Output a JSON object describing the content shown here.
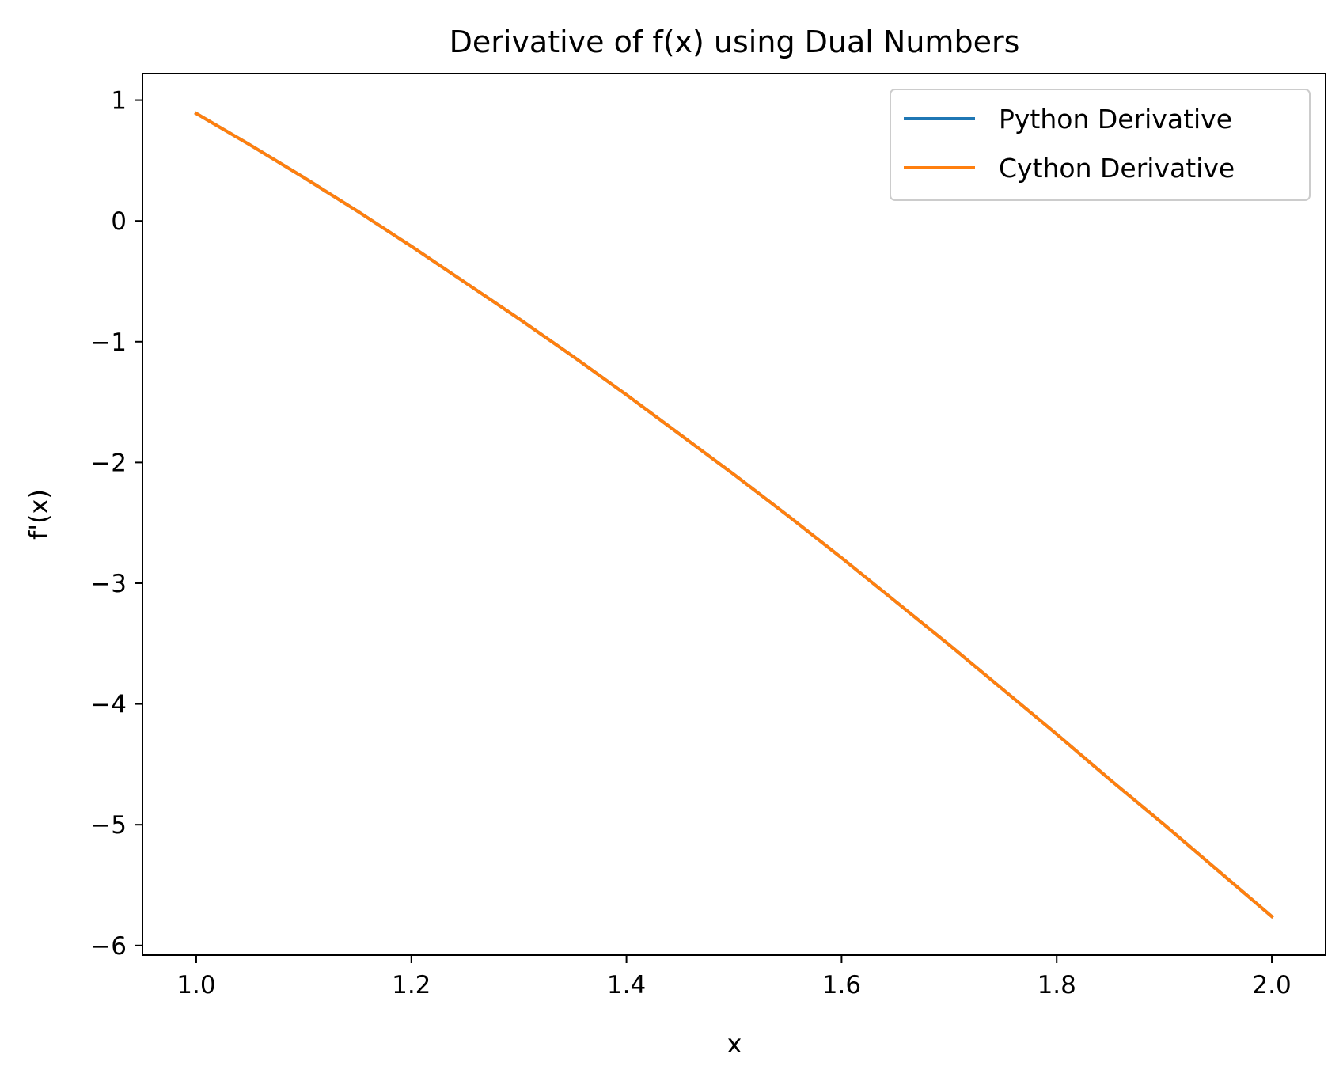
{
  "chart_data": {
    "type": "line",
    "title": "Derivative of f(x) using Dual Numbers",
    "xlabel": "x",
    "ylabel": "f'(x)",
    "xlim": [
      0.95,
      2.05
    ],
    "ylim": [
      -6.08,
      1.22
    ],
    "xticks": [
      1.0,
      1.2,
      1.4,
      1.6,
      1.8,
      2.0
    ],
    "xtick_labels": [
      "1.0",
      "1.2",
      "1.4",
      "1.6",
      "1.8",
      "2.0"
    ],
    "yticks": [
      1,
      0,
      -1,
      -2,
      -3,
      -4,
      -5,
      -6
    ],
    "ytick_labels": [
      "1",
      "0",
      "−1",
      "−2",
      "−3",
      "−4",
      "−5",
      "−6"
    ],
    "grid": false,
    "legend_position": "top-right",
    "x": [
      1.0,
      1.05,
      1.1,
      1.15,
      1.2,
      1.25,
      1.3,
      1.35,
      1.4,
      1.45,
      1.5,
      1.55,
      1.6,
      1.65,
      1.7,
      1.75,
      1.8,
      1.85,
      1.9,
      1.95,
      2.0
    ],
    "series": [
      {
        "name": "Python Derivative",
        "color": "#1f77b4",
        "values": [
          0.89,
          0.63,
          0.36,
          0.08,
          -0.21,
          -0.51,
          -0.81,
          -1.12,
          -1.44,
          -1.77,
          -2.1,
          -2.44,
          -2.79,
          -3.15,
          -3.51,
          -3.88,
          -4.25,
          -4.63,
          -5.0,
          -5.38,
          -5.76
        ]
      },
      {
        "name": "Cython Derivative",
        "color": "#ff7f0e",
        "values": [
          0.89,
          0.63,
          0.36,
          0.08,
          -0.21,
          -0.51,
          -0.81,
          -1.12,
          -1.44,
          -1.77,
          -2.1,
          -2.44,
          -2.79,
          -3.15,
          -3.51,
          -3.88,
          -4.25,
          -4.63,
          -5.0,
          -5.38,
          -5.76
        ]
      }
    ]
  }
}
